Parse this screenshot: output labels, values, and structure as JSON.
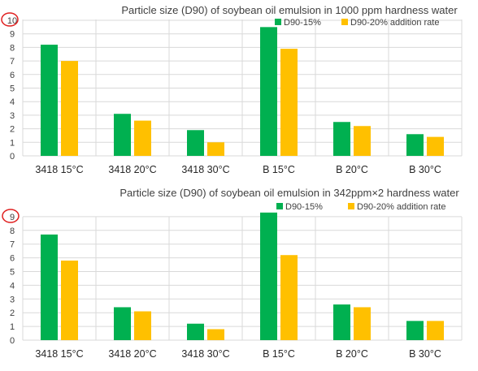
{
  "colors": {
    "d90_15": "#00b050",
    "d90_20": "#ffc000",
    "grid": "#d9d9d9",
    "highlight_circle": "#e02020"
  },
  "chart_data": [
    {
      "type": "bar",
      "title": "Particle size (D90) of soybean oil emulsion in 1000 ppm hardness water",
      "categories": [
        "3418 15°C",
        "3418 20°C",
        "3418 30°C",
        "B 15°C",
        "B 20°C",
        "B 30°C"
      ],
      "series": [
        {
          "name": "D90-15%",
          "values": [
            8.2,
            3.1,
            1.9,
            9.5,
            2.5,
            1.6
          ]
        },
        {
          "name": "D90-20% addition rate",
          "values": [
            7.0,
            2.6,
            1.0,
            7.9,
            2.2,
            1.4
          ]
        }
      ],
      "ylim": [
        0,
        10
      ],
      "yticks": [
        "0",
        "1",
        "2",
        "3",
        "4",
        "5",
        "6",
        "7",
        "8",
        "9",
        "10"
      ],
      "circled_tick": "10",
      "grid": true,
      "legend": "top-right"
    },
    {
      "type": "bar",
      "title": "Particle size (D90) of soybean oil emulsion in 342ppm×2 hardness water",
      "categories": [
        "3418 15°C",
        "3418 20°C",
        "3418 30°C",
        "B 15°C",
        "B 20°C",
        "B 30°C"
      ],
      "series": [
        {
          "name": "D90-15%",
          "values": [
            7.7,
            2.4,
            1.2,
            9.3,
            2.6,
            1.4
          ]
        },
        {
          "name": "D90-20% addition rate",
          "values": [
            5.8,
            2.1,
            0.8,
            6.2,
            2.4,
            1.4
          ]
        }
      ],
      "ylim": [
        0,
        9
      ],
      "yticks": [
        "0",
        "1",
        "2",
        "3",
        "4",
        "5",
        "6",
        "7",
        "8",
        "9"
      ],
      "circled_tick": "9",
      "grid": true,
      "legend": "top-right"
    }
  ]
}
